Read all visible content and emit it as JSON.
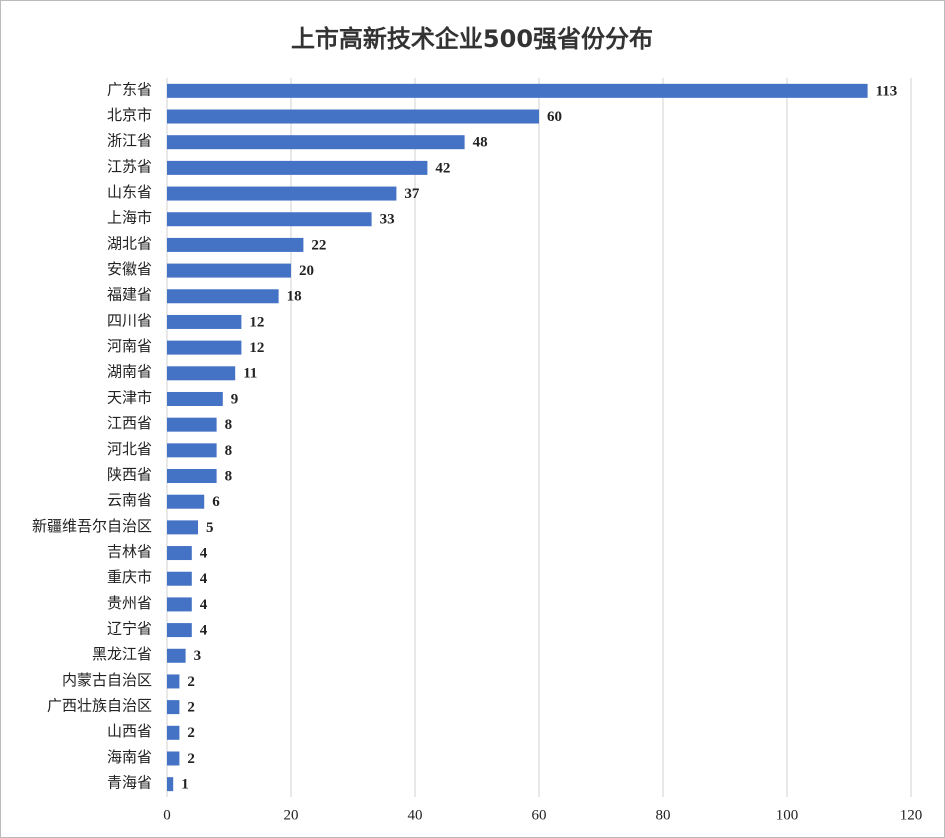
{
  "chart_data": {
    "type": "bar",
    "orientation": "horizontal",
    "title": "上市高新技术企业500强省份分布",
    "categories": [
      "广东省",
      "北京市",
      "浙江省",
      "江苏省",
      "山东省",
      "上海市",
      "湖北省",
      "安徽省",
      "福建省",
      "四川省",
      "河南省",
      "湖南省",
      "天津市",
      "江西省",
      "河北省",
      "陕西省",
      "云南省",
      "新疆维吾尔自治区",
      "吉林省",
      "重庆市",
      "贵州省",
      "辽宁省",
      "黑龙江省",
      "内蒙古自治区",
      "广西壮族自治区",
      "山西省",
      "海南省",
      "青海省"
    ],
    "values": [
      113,
      60,
      48,
      42,
      37,
      33,
      22,
      20,
      18,
      12,
      12,
      11,
      9,
      8,
      8,
      8,
      6,
      5,
      4,
      4,
      4,
      4,
      3,
      2,
      2,
      2,
      2,
      1
    ],
    "color": "#4472c4",
    "xlim": [
      0,
      120
    ],
    "xticks": [
      0,
      20,
      40,
      60,
      80,
      100,
      120
    ],
    "grid": true
  }
}
